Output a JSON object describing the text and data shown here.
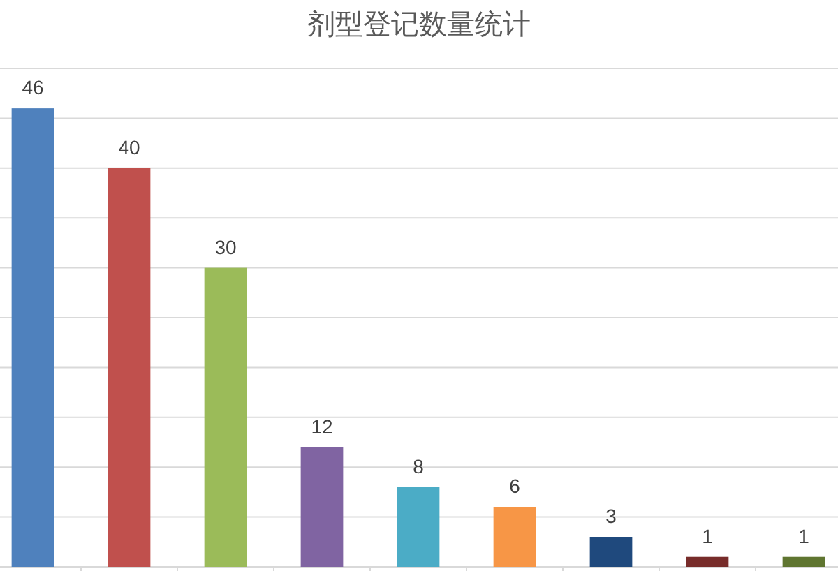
{
  "chart_data": {
    "type": "bar",
    "title": "剂型登记数量统计",
    "categories": [
      null,
      null,
      null,
      null,
      null,
      null,
      null,
      null,
      null
    ],
    "values": [
      46,
      40,
      30,
      12,
      8,
      6,
      3,
      1,
      1
    ],
    "colors": [
      "#4f81bd",
      "#c0504d",
      "#9bbb59",
      "#8064a2",
      "#4bacc6",
      "#f79646",
      "#1f497d",
      "#772c2a",
      "#5f7530"
    ],
    "ylim": [
      0,
      50
    ],
    "yticks": [
      {
        "value": 0,
        "label": null
      },
      {
        "value": 5,
        "label": null
      },
      {
        "value": 10,
        "label": null
      },
      {
        "value": 15,
        "label": null
      },
      {
        "value": 20,
        "label": null
      },
      {
        "value": 25,
        "label": null
      },
      {
        "value": 30,
        "label": null
      },
      {
        "value": 35,
        "label": null
      },
      {
        "value": 40,
        "label": null
      },
      {
        "value": 45,
        "label": null
      },
      {
        "value": 50,
        "label": null
      }
    ],
    "grid": "y",
    "data_labels": true
  }
}
